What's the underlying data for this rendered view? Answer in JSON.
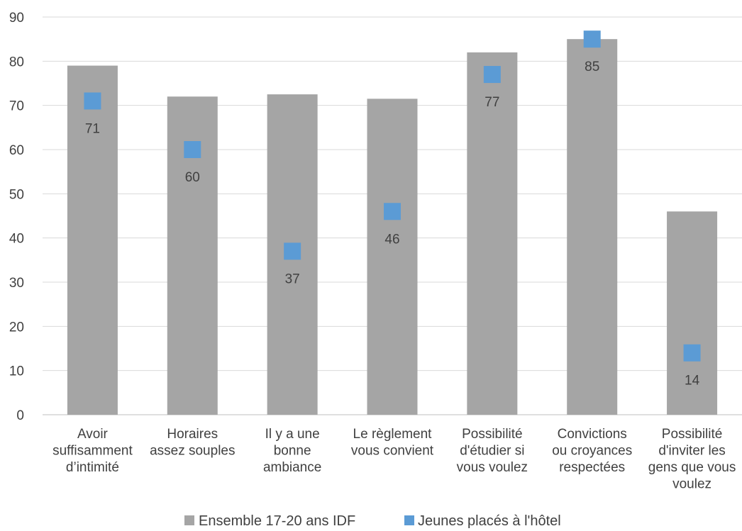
{
  "chart_data": {
    "type": "bar",
    "categories": [
      [
        "Avoir",
        "suffisamment",
        "d’intimité"
      ],
      [
        "Horaires",
        "assez souples"
      ],
      [
        "Il y a une",
        "bonne",
        "ambiance"
      ],
      [
        "Le règlement",
        "vous convient"
      ],
      [
        "Possibilité",
        "d'étudier si",
        "vous voulez"
      ],
      [
        "Convictions",
        "ou croyances",
        "respectées"
      ],
      [
        "Possibilité",
        "d'inviter les",
        "gens que vous",
        "voulez"
      ]
    ],
    "series": [
      {
        "name": "Ensemble 17-20 ans IDF",
        "type": "bar",
        "color": "#a5a5a5",
        "values": [
          79,
          72,
          72.5,
          71.5,
          82,
          85,
          46
        ]
      },
      {
        "name": "Jeunes placés à l'hôtel",
        "type": "marker",
        "color": "#5b9bd5",
        "values": [
          71,
          60,
          37,
          46,
          77,
          85,
          14
        ],
        "data_labels": [
          "71",
          "60",
          "37",
          "46",
          "77",
          "85",
          "14"
        ]
      }
    ],
    "yticks": [
      0,
      10,
      20,
      30,
      40,
      50,
      60,
      70,
      80,
      90
    ],
    "ylim": [
      0,
      90
    ],
    "grid": true,
    "legend_position": "bottom"
  }
}
